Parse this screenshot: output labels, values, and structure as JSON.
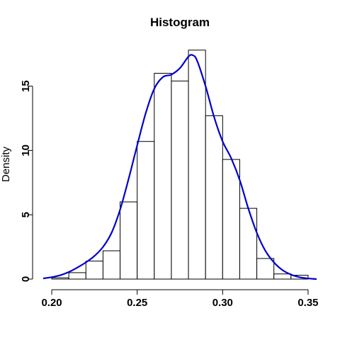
{
  "chart_data": {
    "type": "bar",
    "title": "Histogram",
    "xlabel": "",
    "ylabel": "Density",
    "xlim": [
      0.195,
      0.355
    ],
    "ylim": [
      0,
      18.5
    ],
    "x_ticks": [
      0.2,
      0.25,
      0.3,
      0.35
    ],
    "x_tick_labels": [
      "0.20",
      "0.25",
      "0.30",
      "0.35"
    ],
    "y_ticks": [
      0,
      5,
      10,
      15
    ],
    "y_tick_labels": [
      "0",
      "5",
      "10",
      "15"
    ],
    "grid": false,
    "bins": [
      {
        "start": 0.2,
        "end": 0.21,
        "value": 0.1
      },
      {
        "start": 0.21,
        "end": 0.22,
        "value": 0.5
      },
      {
        "start": 0.22,
        "end": 0.23,
        "value": 1.4
      },
      {
        "start": 0.23,
        "end": 0.24,
        "value": 2.2
      },
      {
        "start": 0.24,
        "end": 0.25,
        "value": 6.0
      },
      {
        "start": 0.25,
        "end": 0.26,
        "value": 10.7
      },
      {
        "start": 0.26,
        "end": 0.27,
        "value": 16.0
      },
      {
        "start": 0.27,
        "end": 0.28,
        "value": 15.4
      },
      {
        "start": 0.28,
        "end": 0.29,
        "value": 17.8
      },
      {
        "start": 0.29,
        "end": 0.3,
        "value": 12.7
      },
      {
        "start": 0.3,
        "end": 0.31,
        "value": 9.3
      },
      {
        "start": 0.31,
        "end": 0.32,
        "value": 5.5
      },
      {
        "start": 0.32,
        "end": 0.33,
        "value": 1.6
      },
      {
        "start": 0.33,
        "end": 0.34,
        "value": 0.4
      },
      {
        "start": 0.34,
        "end": 0.35,
        "value": 0.3
      }
    ],
    "density_curve": {
      "color": "#0000cc",
      "x": [
        0.195,
        0.2,
        0.205,
        0.21,
        0.215,
        0.22,
        0.225,
        0.23,
        0.235,
        0.24,
        0.245,
        0.25,
        0.255,
        0.26,
        0.265,
        0.27,
        0.275,
        0.28,
        0.2825,
        0.285,
        0.29,
        0.295,
        0.3,
        0.305,
        0.31,
        0.315,
        0.32,
        0.325,
        0.33,
        0.335,
        0.34,
        0.345,
        0.35,
        0.355
      ],
      "y": [
        0.05,
        0.15,
        0.3,
        0.55,
        0.9,
        1.3,
        1.8,
        2.5,
        3.6,
        5.4,
        7.8,
        10.4,
        12.9,
        14.8,
        15.7,
        15.9,
        16.4,
        17.3,
        17.4,
        17.0,
        15.0,
        12.6,
        10.7,
        9.4,
        7.7,
        5.5,
        3.6,
        2.2,
        1.3,
        0.7,
        0.35,
        0.15,
        0.05,
        0.0
      ]
    }
  }
}
